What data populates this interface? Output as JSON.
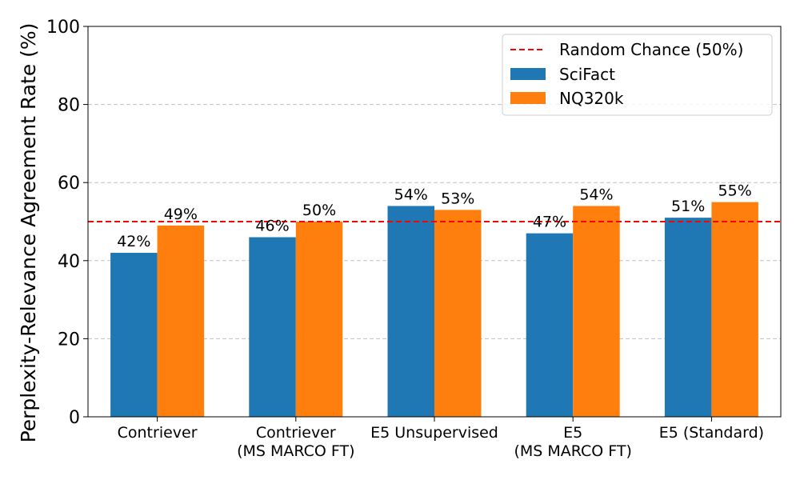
{
  "chart_data": {
    "type": "bar",
    "title": "",
    "xlabel": "",
    "ylabel": "Perplexity-Relevance Agreement Rate (%)",
    "ylim": [
      0,
      100
    ],
    "yticks": [
      0,
      20,
      40,
      60,
      80,
      100
    ],
    "grid": "y-dashed",
    "categories": [
      [
        "Contriever"
      ],
      [
        "Contriever",
        "(MS MARCO FT)"
      ],
      [
        "E5 Unsupervised"
      ],
      [
        "E5",
        "(MS MARCO FT)"
      ],
      [
        "E5 (Standard)"
      ]
    ],
    "series": [
      {
        "name": "SciFact",
        "values": [
          42,
          46,
          54,
          47,
          51
        ],
        "labels": [
          "42%",
          "46%",
          "54%",
          "47%",
          "51%"
        ],
        "color": "#1f77b4"
      },
      {
        "name": "NQ320k",
        "values": [
          49,
          50,
          53,
          54,
          55
        ],
        "labels": [
          "49%",
          "50%",
          "53%",
          "54%",
          "55%"
        ],
        "color": "#ff7f0e"
      }
    ],
    "reference_line": {
      "name": "Random Chance (50%)",
      "value": 50,
      "color": "#ff0000",
      "style": "dashed"
    },
    "legend": {
      "position": "top-right"
    }
  }
}
